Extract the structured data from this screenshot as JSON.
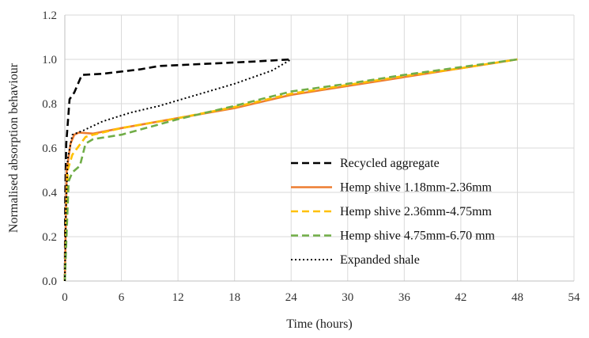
{
  "chart_data": {
    "type": "line",
    "title": "",
    "xlabel": "Time (hours)",
    "ylabel": "Normalised absorption behaviour",
    "xlim": [
      0,
      54
    ],
    "ylim": [
      0,
      1.2
    ],
    "grid": true,
    "legend_position": "bottom-right",
    "xticks": [
      "0",
      "6",
      "12",
      "18",
      "24",
      "30",
      "36",
      "42",
      "48",
      "54"
    ],
    "yticks": [
      "0.0",
      "0.2",
      "0.4",
      "0.6",
      "0.8",
      "1.0",
      "1.2"
    ],
    "series": [
      {
        "name": "Recycled aggregate",
        "color": "#000000",
        "style": "dashed",
        "points": [
          [
            0,
            0
          ],
          [
            0.05,
            0.4
          ],
          [
            0.15,
            0.62
          ],
          [
            0.5,
            0.82
          ],
          [
            1.0,
            0.85
          ],
          [
            1.8,
            0.93
          ],
          [
            4,
            0.935
          ],
          [
            8,
            0.955
          ],
          [
            10,
            0.97
          ],
          [
            15,
            0.98
          ],
          [
            20,
            0.99
          ],
          [
            24,
            1.0
          ]
        ]
      },
      {
        "name": "Hemp shive 1.18mm-2.36mm",
        "color": "#ed7d31",
        "style": "solid",
        "points": [
          [
            0,
            0
          ],
          [
            0.2,
            0.5
          ],
          [
            0.6,
            0.62
          ],
          [
            1.0,
            0.66
          ],
          [
            1.5,
            0.67
          ],
          [
            3,
            0.665
          ],
          [
            6,
            0.69
          ],
          [
            12,
            0.735
          ],
          [
            18,
            0.78
          ],
          [
            24,
            0.84
          ],
          [
            30,
            0.88
          ],
          [
            36,
            0.92
          ],
          [
            42,
            0.96
          ],
          [
            48,
            1.0
          ]
        ]
      },
      {
        "name": "Hemp shive 2.36mm-4.75mm",
        "color": "#ffc000",
        "style": "dashed",
        "points": [
          [
            0,
            0
          ],
          [
            0.3,
            0.5
          ],
          [
            0.8,
            0.57
          ],
          [
            1.5,
            0.61
          ],
          [
            2.2,
            0.65
          ],
          [
            3,
            0.66
          ],
          [
            6,
            0.69
          ],
          [
            12,
            0.735
          ],
          [
            18,
            0.785
          ],
          [
            24,
            0.845
          ],
          [
            30,
            0.885
          ],
          [
            36,
            0.925
          ],
          [
            42,
            0.96
          ],
          [
            48,
            1.0
          ]
        ]
      },
      {
        "name": "Hemp shive 4.75mm-6.70 mm",
        "color": "#70ad47",
        "style": "dashed",
        "points": [
          [
            0,
            0
          ],
          [
            0.4,
            0.45
          ],
          [
            0.8,
            0.49
          ],
          [
            1.6,
            0.52
          ],
          [
            2.2,
            0.62
          ],
          [
            3,
            0.64
          ],
          [
            6,
            0.66
          ],
          [
            12,
            0.73
          ],
          [
            18,
            0.79
          ],
          [
            24,
            0.855
          ],
          [
            30,
            0.89
          ],
          [
            36,
            0.93
          ],
          [
            42,
            0.965
          ],
          [
            48,
            1.0
          ]
        ]
      },
      {
        "name": "Expanded shale",
        "color": "#000000",
        "style": "dotted",
        "points": [
          [
            0,
            0
          ],
          [
            0.1,
            0.3
          ],
          [
            0.3,
            0.55
          ],
          [
            0.8,
            0.66
          ],
          [
            2,
            0.68
          ],
          [
            4,
            0.72
          ],
          [
            7,
            0.76
          ],
          [
            10,
            0.79
          ],
          [
            14,
            0.84
          ],
          [
            18,
            0.89
          ],
          [
            22,
            0.95
          ],
          [
            24,
            1.0
          ]
        ]
      }
    ]
  }
}
